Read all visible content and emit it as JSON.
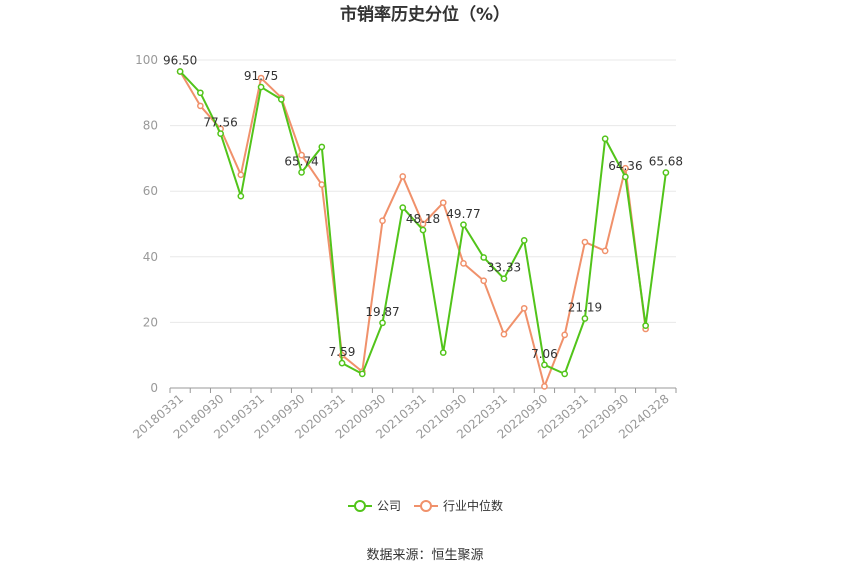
{
  "chart_data": {
    "type": "line",
    "title": "市销率历史分位（%）",
    "source": "数据来源：恒生聚源",
    "ylim": [
      0,
      100
    ],
    "yticks": [
      "0",
      "20",
      "40",
      "60",
      "80",
      "100"
    ],
    "x": [
      "20180331",
      "20180630",
      "20180930",
      "20181231",
      "20190331",
      "20190630",
      "20190930",
      "20191231",
      "20200331",
      "20200630",
      "20200930",
      "20201231",
      "20210331",
      "20210630",
      "20210930",
      "20211231",
      "20220331",
      "20220630",
      "20220930",
      "20221231",
      "20230331",
      "20230630",
      "20230930",
      "20231231",
      "20240328"
    ],
    "xticks": [
      "20180331",
      "20180930",
      "20190331",
      "20190930",
      "20200331",
      "20200930",
      "20210331",
      "20210930",
      "20220331",
      "20220930",
      "20230331",
      "20230930",
      "20240328"
    ],
    "grid": true,
    "legend_position": "bottom",
    "series": [
      {
        "name": "公司",
        "color": "#52c41a",
        "values": [
          96.5,
          90.0,
          77.56,
          58.5,
          91.75,
          88.0,
          65.74,
          73.5,
          7.59,
          4.3,
          19.87,
          55.0,
          48.18,
          10.8,
          49.77,
          39.8,
          33.33,
          45.0,
          7.06,
          4.3,
          21.19,
          76.0,
          64.36,
          19.0,
          65.68
        ],
        "labels": [
          "96.50",
          "",
          "77.56",
          "",
          "91.75",
          "",
          "65.74",
          "",
          "7.59",
          "",
          "19.87",
          "",
          "48.18",
          "",
          "49.77",
          "",
          "33.33",
          "",
          "7.06",
          "",
          "21.19",
          "",
          "64.36",
          "",
          "65.68"
        ]
      },
      {
        "name": "行业中位数",
        "color": "#f0916b",
        "values": [
          96.5,
          86.0,
          79.0,
          65.0,
          94.5,
          88.5,
          71.0,
          62.0,
          10.0,
          5.0,
          51.0,
          64.5,
          50.0,
          56.5,
          38.0,
          32.7,
          16.4,
          24.3,
          0.5,
          16.2,
          44.5,
          41.8,
          67.0,
          18.0,
          null
        ]
      }
    ]
  }
}
